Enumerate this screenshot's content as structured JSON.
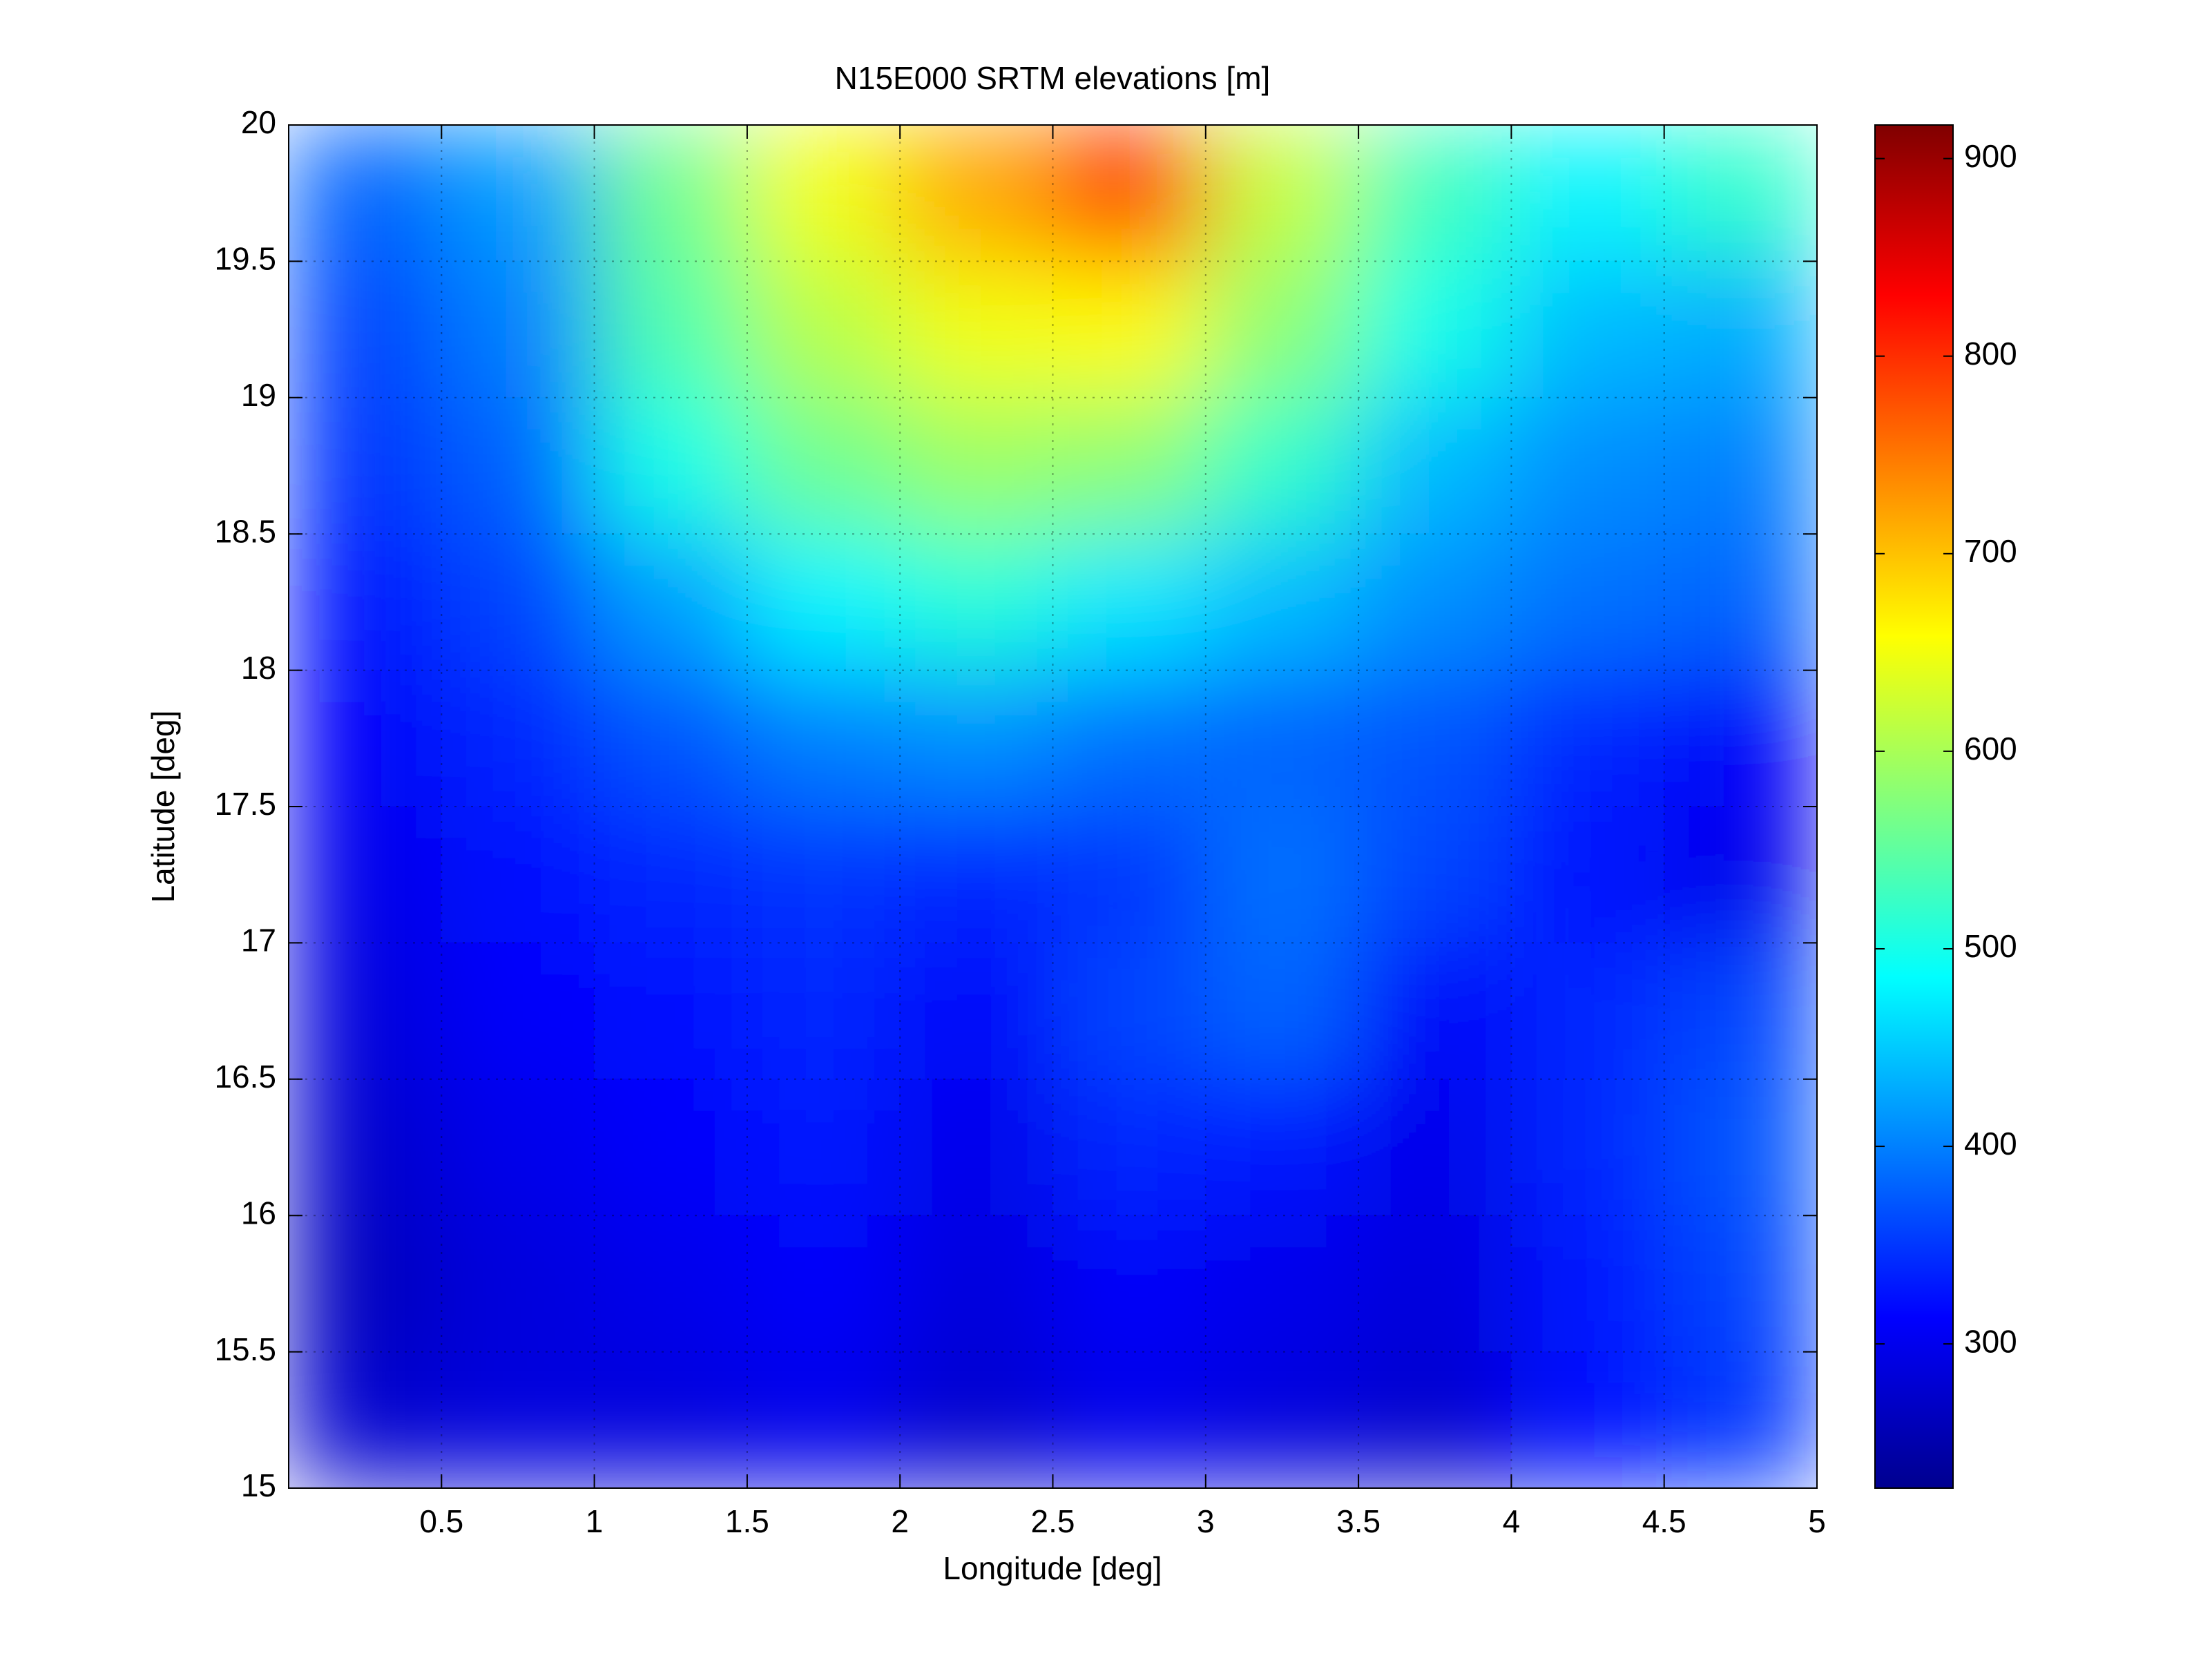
{
  "chart_data": {
    "type": "heatmap",
    "title": "N15E000 SRTM elevations [m]",
    "xlabel": "Longitude [deg]",
    "ylabel": "Latitude [deg]",
    "colormap": "jet",
    "xlim": [
      0,
      5
    ],
    "xticks": [
      0.5,
      1,
      1.5,
      2,
      2.5,
      3,
      3.5,
      4,
      4.5,
      5
    ],
    "ylim": [
      15,
      20
    ],
    "yticks": [
      15,
      15.5,
      16,
      16.5,
      17,
      17.5,
      18,
      18.5,
      19,
      19.5,
      20
    ],
    "clim": [
      227,
      917
    ],
    "cticks": [
      300,
      400,
      500,
      600,
      700,
      800,
      900
    ],
    "grid": true,
    "z": [
      [
        380,
        420,
        560,
        650,
        720,
        800,
        620,
        530,
        480,
        520
      ],
      [
        360,
        400,
        540,
        610,
        650,
        660,
        580,
        500,
        440,
        430
      ],
      [
        350,
        380,
        500,
        560,
        590,
        580,
        520,
        440,
        410,
        400
      ],
      [
        330,
        360,
        420,
        480,
        510,
        470,
        440,
        410,
        390,
        380
      ],
      [
        310,
        340,
        370,
        400,
        410,
        390,
        380,
        370,
        340,
        310
      ],
      [
        300,
        320,
        340,
        350,
        340,
        350,
        390,
        360,
        320,
        300
      ],
      [
        290,
        310,
        320,
        340,
        310,
        360,
        380,
        310,
        340,
        360
      ],
      [
        280,
        300,
        310,
        330,
        300,
        340,
        330,
        300,
        340,
        370
      ],
      [
        270,
        290,
        300,
        310,
        290,
        310,
        300,
        290,
        330,
        360
      ],
      [
        280,
        290,
        290,
        300,
        280,
        300,
        290,
        280,
        320,
        350
      ]
    ]
  }
}
